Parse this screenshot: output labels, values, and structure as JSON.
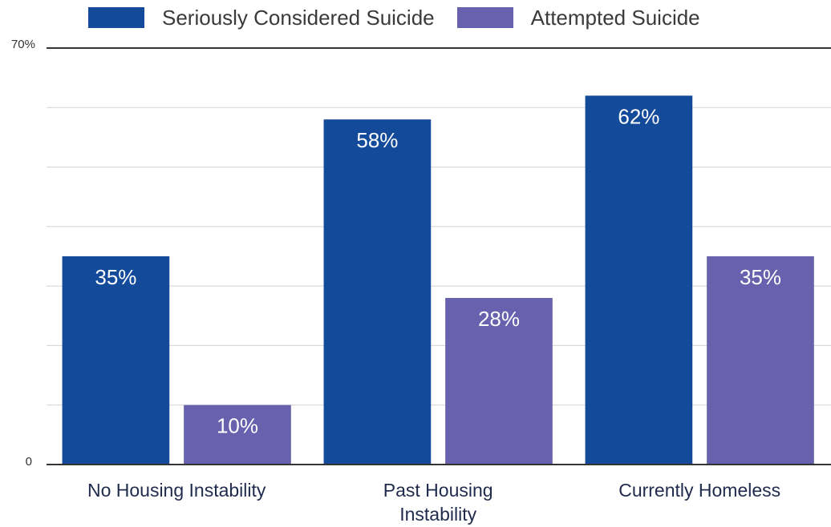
{
  "chart_data": {
    "type": "bar",
    "categories": [
      "No Housing Instability",
      "Past Housing Instability",
      "Currently Homeless"
    ],
    "category_lines": [
      [
        "No Housing Instability"
      ],
      [
        "Past Housing",
        "Instability"
      ],
      [
        "Currently Homeless"
      ]
    ],
    "series": [
      {
        "name": "Seriously Considered Suicide",
        "values": [
          35,
          58,
          62
        ],
        "labels": [
          "35%",
          "58%",
          "62%"
        ],
        "color": "#134a9a"
      },
      {
        "name": "Attempted Suicide",
        "values": [
          10,
          28,
          35
        ],
        "labels": [
          "10%",
          "28%",
          "35%"
        ],
        "color": "#6861ad"
      }
    ],
    "ylim": [
      0,
      70
    ],
    "y_tick_labels": {
      "top": "70%",
      "bottom": "0"
    },
    "grid": true,
    "legend_position": "top"
  }
}
